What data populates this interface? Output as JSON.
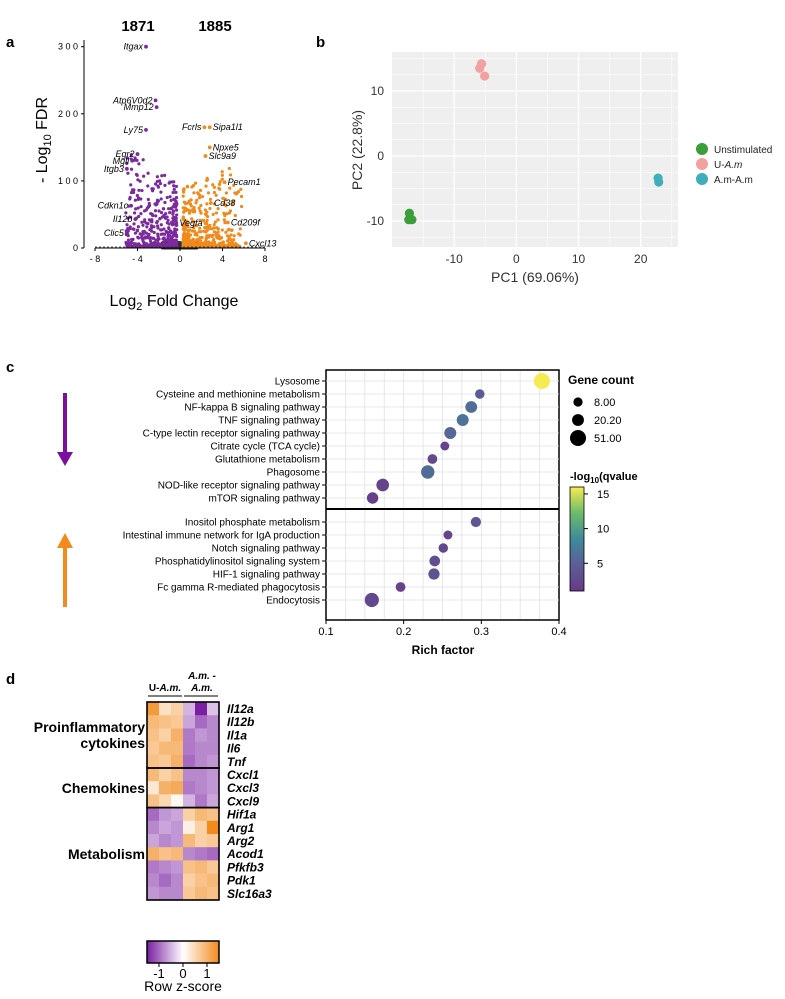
{
  "panel_labels": {
    "a": "a",
    "b": "b",
    "c": "c",
    "d": "d"
  },
  "chart_data": [
    {
      "panel": "a",
      "type": "scatter",
      "title": "",
      "counts": {
        "down": "1871",
        "up": "1885"
      },
      "xlabel_prefix": "Log",
      "xlabel_sub": "2",
      "xlabel_suffix": " Fold Change",
      "ylabel_prefix": "- Log",
      "ylabel_sub": "10",
      "ylabel_suffix": " FDR",
      "xlim": [
        -8,
        8
      ],
      "ylim": [
        0,
        310
      ],
      "xticks": [
        -8,
        -4,
        0,
        4,
        8
      ],
      "xtick_labels": [
        "- 8",
        "- 4",
        "0",
        "4",
        "8"
      ],
      "yticks": [
        0,
        100,
        200,
        300
      ],
      "ytick_labels": [
        "0",
        "1 0 0",
        "2 0 0",
        "3 0 0"
      ],
      "colors": {
        "down": "#7b2a9e",
        "up": "#f08a1c",
        "ns": "#2d2d2d"
      },
      "labels": [
        {
          "text": "Itgax",
          "x": -3.2,
          "y": 300,
          "side": "left"
        },
        {
          "text": "Atp6V0d2",
          "x": -2.3,
          "y": 220,
          "side": "left"
        },
        {
          "text": "Mmp12",
          "x": -2.2,
          "y": 210,
          "side": "left"
        },
        {
          "text": "Ly75",
          "x": -3.2,
          "y": 176,
          "side": "left"
        },
        {
          "text": "Egr2",
          "x": -4.0,
          "y": 140,
          "side": "left"
        },
        {
          "text": "Mgll",
          "x": -4.5,
          "y": 130,
          "side": "left"
        },
        {
          "text": "Itgb3",
          "x": -5.0,
          "y": 118,
          "side": "left"
        },
        {
          "text": "Cdkn1c",
          "x": -4.6,
          "y": 63,
          "side": "left"
        },
        {
          "text": "Il12b",
          "x": -4.2,
          "y": 43,
          "side": "left"
        },
        {
          "text": "Clic5",
          "x": -5.0,
          "y": 22,
          "side": "left"
        },
        {
          "text": "Fcrls",
          "x": 2.3,
          "y": 180,
          "side": "left"
        },
        {
          "text": "Sipa1l1",
          "x": 2.8,
          "y": 180,
          "side": "right"
        },
        {
          "text": "Npxe5",
          "x": 2.8,
          "y": 150,
          "side": "right"
        },
        {
          "text": "Slc9a9",
          "x": 2.4,
          "y": 137,
          "side": "right"
        },
        {
          "text": "Pecam1",
          "x": 4.2,
          "y": 98,
          "side": "right"
        },
        {
          "text": "Cd38",
          "x": 2.9,
          "y": 67,
          "side": "right"
        },
        {
          "text": "Vegfa",
          "x": 2.4,
          "y": 37,
          "side": "left"
        },
        {
          "text": "Cd209f",
          "x": 4.5,
          "y": 38,
          "side": "right"
        },
        {
          "text": "Cxcl13",
          "x": 6.2,
          "y": 7,
          "side": "right"
        }
      ]
    },
    {
      "panel": "b",
      "type": "scatter",
      "xlabel": "PC1 (69.06%)",
      "ylabel": "PC2 (22.8%)",
      "xlim": [
        -20,
        26
      ],
      "ylim": [
        -14,
        16
      ],
      "xticks": [
        -10,
        0,
        10,
        20
      ],
      "yticks": [
        -10,
        0,
        10
      ],
      "grid": true,
      "legend_position": "right",
      "series": [
        {
          "name": "Unstimulated",
          "italic_part": "",
          "color": "#3a9e3a",
          "points": [
            [
              -17.2,
              -8.8
            ],
            [
              -17.3,
              -9.8
            ],
            [
              -16.8,
              -9.8
            ]
          ]
        },
        {
          "name": "U-",
          "italic_part": "A.m",
          "color": "#f4a0a0",
          "points": [
            [
              -5.9,
              13.5
            ],
            [
              -5.6,
              14.2
            ],
            [
              -5.1,
              12.3
            ]
          ]
        },
        {
          "name": "A.m-A.m",
          "italic_part": "",
          "color": "#3eaebd",
          "points": [
            [
              22.8,
              -3.4
            ],
            [
              22.9,
              -4.0
            ]
          ]
        }
      ]
    },
    {
      "panel": "c",
      "type": "scatter",
      "xlabel": "Rich factor",
      "xlim": [
        0.1,
        0.4
      ],
      "xticks": [
        0.1,
        0.2,
        0.3,
        0.4
      ],
      "xtick_labels": [
        "0.1",
        "0.2",
        "0.3",
        "0.4"
      ],
      "size_legend_title": "Gene count",
      "size_legend": [
        {
          "label": "8.00",
          "value": 8
        },
        {
          "label": "20.20",
          "value": 20.2
        },
        {
          "label": "51.00",
          "value": 51
        }
      ],
      "color_legend_title": "-log",
      "color_legend_title_sub": "10",
      "color_legend_title_suffix": "(qvalue",
      "color_range": [
        1,
        16
      ],
      "color_ticks": [
        15,
        10,
        5
      ],
      "color_tick_labels": [
        "15",
        "10",
        "5"
      ],
      "groups": [
        {
          "direction": "down",
          "arrow_color": "#7b0fa0",
          "terms": [
            {
              "term": "Lysosome",
              "rich": 0.378,
              "count": 51,
              "q": 16
            },
            {
              "term": "Cysteine and methionine metabolism",
              "rich": 0.298,
              "count": 9,
              "q": 4.5
            },
            {
              "term": "NF-kappa B signaling pathway",
              "rich": 0.287,
              "count": 20,
              "q": 6.0
            },
            {
              "term": "TNF signaling pathway",
              "rich": 0.276,
              "count": 21,
              "q": 6.5
            },
            {
              "term": "C-type lectin receptor signaling pathway",
              "rich": 0.26,
              "count": 21,
              "q": 5.5
            },
            {
              "term": "Citrate cycle (TCA cycle)",
              "rich": 0.253,
              "count": 7,
              "q": 2.0
            },
            {
              "term": "Glutathione metabolism",
              "rich": 0.237,
              "count": 10,
              "q": 2.5
            },
            {
              "term": "Phagosome",
              "rich": 0.231,
              "count": 30,
              "q": 6.0
            },
            {
              "term": "NOD-like receptor signaling pathway",
              "rich": 0.173,
              "count": 25,
              "q": 2.0
            },
            {
              "term": "mTOR signaling pathway",
              "rich": 0.16,
              "count": 18,
              "q": 1.5
            }
          ]
        },
        {
          "direction": "up",
          "arrow_color": "#f48a1c",
          "terms": [
            {
              "term": "Inositol phosphate metabolism",
              "rich": 0.293,
              "count": 12,
              "q": 4.0
            },
            {
              "term": "Intestinal immune network for IgA production",
              "rich": 0.257,
              "count": 7,
              "q": 2.0
            },
            {
              "term": "Notch signaling pathway",
              "rich": 0.251,
              "count": 9,
              "q": 2.5
            },
            {
              "term": "Phosphatidylinositol signaling system",
              "rich": 0.24,
              "count": 14,
              "q": 3.0
            },
            {
              "term": "HIF-1 signaling pathway",
              "rich": 0.239,
              "count": 17,
              "q": 3.5
            },
            {
              "term": "Fc gamma R-mediated phagocytosis",
              "rich": 0.196,
              "count": 10,
              "q": 2.0
            },
            {
              "term": "Endocytosis",
              "rich": 0.159,
              "count": 36,
              "q": 2.5
            }
          ]
        }
      ]
    },
    {
      "panel": "d",
      "type": "heatmap",
      "column_groups": [
        {
          "label_prefix": "U-",
          "label_italic": "A.m.",
          "line1": "",
          "cols": 3
        },
        {
          "label_prefix": "",
          "label_italic": "A.m. -",
          "line1": "",
          "line2": "A.m.",
          "cols": 3
        }
      ],
      "row_groups": [
        {
          "label": "Proinflammatory cytokines",
          "label_lines": [
            "Proinflammatory",
            "cytokines"
          ],
          "start": 0,
          "end": 5
        },
        {
          "label": "Chemokines",
          "label_lines": [
            "Chemokines"
          ],
          "start": 5,
          "end": 8
        },
        {
          "label": "Metabolism",
          "label_lines": [
            "Metabolism"
          ],
          "start": 8,
          "end": 15
        }
      ],
      "genes": [
        "Il12a",
        "Il12b",
        "Il1a",
        "Il6",
        "Tnf",
        "Cxcl1",
        "Cxcl3",
        "Cxcl9",
        "Hif1a",
        "Arg1",
        "Arg2",
        "Acod1",
        "Pfkfb3",
        "Pdk1",
        "Slc16a3"
      ],
      "values": [
        [
          1.3,
          0.4,
          0.6,
          -0.5,
          -1.6,
          -0.4
        ],
        [
          0.9,
          0.8,
          0.7,
          -0.6,
          -1.0,
          -0.8
        ],
        [
          0.8,
          0.6,
          1.0,
          -0.9,
          -0.7,
          -0.8
        ],
        [
          0.7,
          0.9,
          0.9,
          -0.9,
          -0.8,
          -0.8
        ],
        [
          0.8,
          0.7,
          1.0,
          -1.0,
          -0.8,
          -0.7
        ],
        [
          0.9,
          0.6,
          0.8,
          -0.8,
          -0.8,
          -0.7
        ],
        [
          0.3,
          1.0,
          1.1,
          -0.9,
          -0.8,
          -0.7
        ],
        [
          0.8,
          0.5,
          0.1,
          -0.5,
          -0.9,
          -0.6
        ],
        [
          -1.0,
          -0.7,
          -0.6,
          0.6,
          0.9,
          0.8
        ],
        [
          -0.8,
          -0.6,
          -0.7,
          0.2,
          0.6,
          1.5
        ],
        [
          -0.6,
          -0.8,
          -0.7,
          0.9,
          0.6,
          0.7
        ],
        [
          1.0,
          0.8,
          0.9,
          -0.8,
          -0.9,
          -1.0
        ],
        [
          -0.9,
          -0.8,
          -0.7,
          0.8,
          0.9,
          0.7
        ],
        [
          -0.8,
          -1.0,
          -0.8,
          0.6,
          0.8,
          0.9
        ],
        [
          -0.7,
          -0.8,
          -0.8,
          0.7,
          0.9,
          0.8
        ]
      ],
      "colorbar_ticks": [
        -1,
        0,
        1
      ],
      "colorbar_tick_labels": [
        "-1",
        "0",
        "1"
      ],
      "colorbar_title": "Row z-score",
      "colors": {
        "low": "#7a1fa2",
        "mid": "#ffffff",
        "high": "#f28a1e"
      }
    }
  ]
}
